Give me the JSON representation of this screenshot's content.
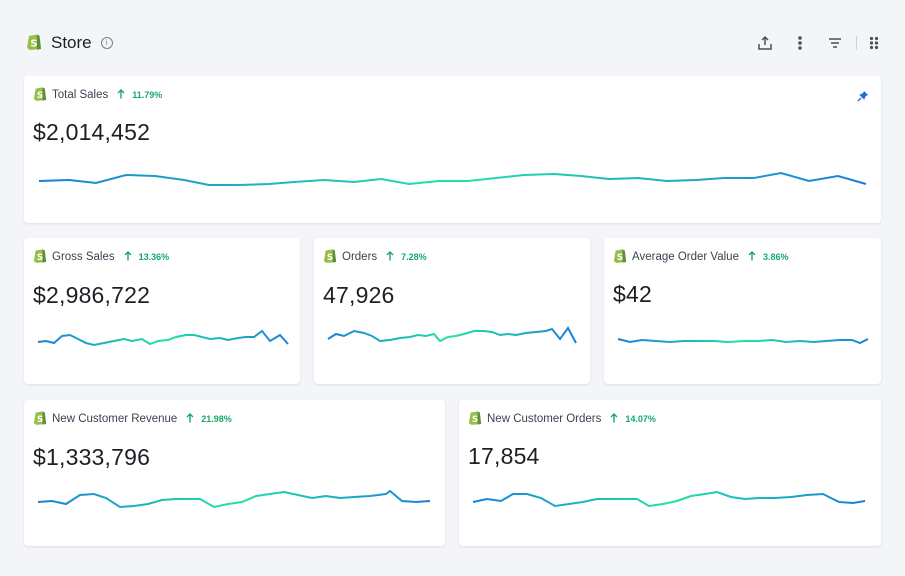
{
  "header": {
    "title": "Store",
    "info_icon": "info-icon",
    "tools": [
      "export-icon",
      "more-vertical-icon",
      "filter-icon",
      "drag-handle-icon"
    ]
  },
  "colors": {
    "trend_start": "#1a7fd8",
    "trend_end": "#20e3a6",
    "delta": "#19a86c",
    "pin": "#1d6fe0"
  },
  "cards": {
    "total_sales": {
      "label": "Total Sales",
      "delta": "11.79%",
      "value": "$2,014,452"
    },
    "gross_sales": {
      "label": "Gross Sales",
      "delta": "13.36%",
      "value": "$2,986,722"
    },
    "orders": {
      "label": "Orders",
      "delta": "7.28%",
      "value": "47,926"
    },
    "aov": {
      "label": "Average Order Value",
      "delta": "3.86%",
      "value": "$42"
    },
    "new_customer_revenue": {
      "label": "New Customer Revenue",
      "delta": "21.98%",
      "value": "$1,333,796"
    },
    "new_customer_orders": {
      "label": "New Customer Orders",
      "delta": "14.07%",
      "value": "17,854"
    }
  }
}
